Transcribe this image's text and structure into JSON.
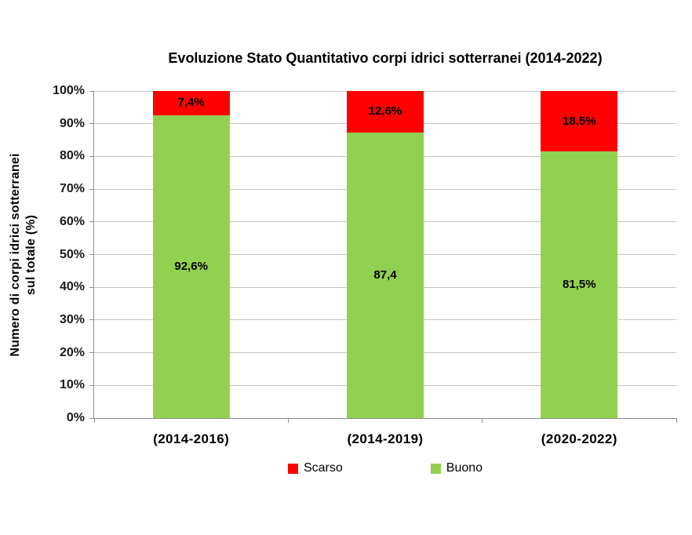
{
  "page": {
    "background": "#FFFFFF"
  },
  "chart_data": {
    "type": "bar",
    "stacked": true,
    "title": "Evoluzione Stato Quantitativo corpi idrici sotterranei (2014-2022)",
    "categories": [
      "(2014-2016)",
      "(2014-2019)",
      "(2020-2022)"
    ],
    "series": [
      {
        "name": "Buono",
        "color": "#92D050",
        "values": [
          92.6,
          87.4,
          81.5
        ],
        "data_labels": [
          "92,6%",
          "87,4",
          "81,5%"
        ]
      },
      {
        "name": "Scarso",
        "color": "#FF0000",
        "values": [
          7.4,
          12.6,
          18.5
        ],
        "data_labels": [
          "7,4%",
          "12,6%",
          "18,5%"
        ]
      }
    ],
    "ylabel_lines": [
      "Numero di corpi idrici sotterranei",
      "sul totale (%)"
    ],
    "ylim": [
      0,
      100
    ],
    "ytick_step": 10,
    "ytick_labels": [
      "0%",
      "10%",
      "20%",
      "30%",
      "40%",
      "50%",
      "60%",
      "70%",
      "80%",
      "90%",
      "100%"
    ],
    "grid": true,
    "legend_position": "bottom",
    "legend": [
      {
        "label": "Scarso",
        "color": "#FF0000"
      },
      {
        "label": "Buono",
        "color": "#92D050"
      }
    ],
    "colors": {
      "gridline": "#C6C6C6",
      "axis": "#8C8C8C",
      "text": "#000000"
    }
  }
}
